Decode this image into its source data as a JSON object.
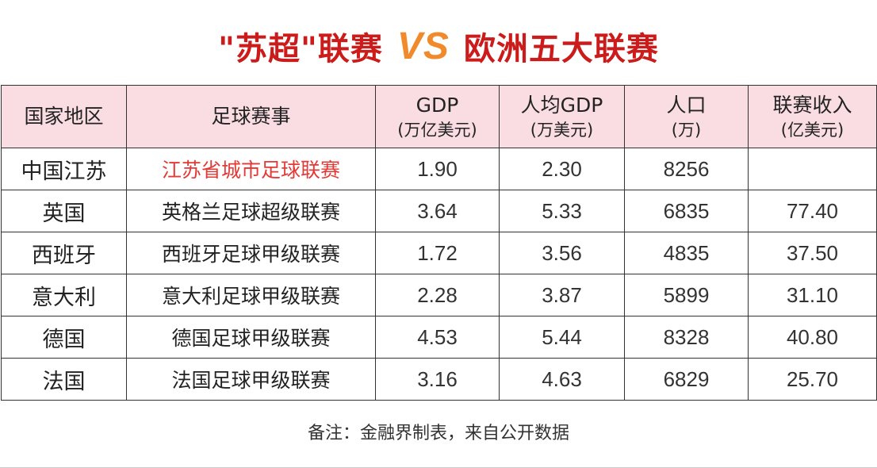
{
  "title": {
    "left": "\"苏超\"联赛",
    "vs": "VS",
    "right": "欧洲五大联赛"
  },
  "table": {
    "headers": [
      {
        "label": "国家地区",
        "sub": ""
      },
      {
        "label": "足球赛事",
        "sub": ""
      },
      {
        "label": "GDP",
        "sub": "(万亿美元)"
      },
      {
        "label": "人均GDP",
        "sub": "(万美元)"
      },
      {
        "label": "人口",
        "sub": "(万)"
      },
      {
        "label": "联赛收入",
        "sub": "(亿美元)"
      }
    ],
    "rows": [
      {
        "region": "中国江苏",
        "league": "江苏省城市足球联赛",
        "gdp": "1.90",
        "gdp_per_capita": "2.30",
        "population": "8256",
        "revenue": "",
        "highlight": true
      },
      {
        "region": "英国",
        "league": "英格兰足球超级联赛",
        "gdp": "3.64",
        "gdp_per_capita": "5.33",
        "population": "6835",
        "revenue": "77.40",
        "highlight": false
      },
      {
        "region": "西班牙",
        "league": "西班牙足球甲级联赛",
        "gdp": "1.72",
        "gdp_per_capita": "3.56",
        "population": "4835",
        "revenue": "37.50",
        "highlight": false
      },
      {
        "region": "意大利",
        "league": "意大利足球甲级联赛",
        "gdp": "2.28",
        "gdp_per_capita": "3.87",
        "population": "5899",
        "revenue": "31.10",
        "highlight": false
      },
      {
        "region": "德国",
        "league": "德国足球甲级联赛",
        "gdp": "4.53",
        "gdp_per_capita": "5.44",
        "population": "8328",
        "revenue": "40.80",
        "highlight": false
      },
      {
        "region": "法国",
        "league": "法国足球甲级联赛",
        "gdp": "3.16",
        "gdp_per_capita": "4.63",
        "population": "6829",
        "revenue": "25.70",
        "highlight": false
      }
    ]
  },
  "note": "备注：金融界制表，来自公开数据",
  "colors": {
    "title_red": "#cc1b1b",
    "vs_orange": "#f08a2a",
    "header_bg": "#f9dde2",
    "highlight_red": "#e53935"
  }
}
